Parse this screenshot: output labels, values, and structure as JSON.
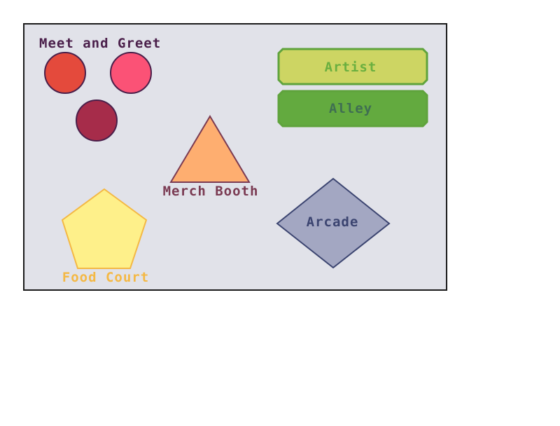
{
  "map": {
    "background_color": "#e1e2e9",
    "border_color": "#1b1b1b"
  },
  "zones": {
    "meet_and_greet": {
      "label": "Meet and Greet",
      "label_color": "#4a1f4a",
      "markers": [
        {
          "color": "#e44a3c"
        },
        {
          "color": "#fb5276"
        },
        {
          "color": "#a62c4a"
        }
      ],
      "outline_color": "#4a1f4a"
    },
    "artist_alley": {
      "label_top": "Artist",
      "label_bottom": "Alley",
      "top_fill": "#cdd563",
      "top_text_color": "#6aaf3f",
      "bottom_fill": "#63aa3f",
      "bottom_text_color": "#3f6e52",
      "outline_color": "#5fa33c"
    },
    "merch_booth": {
      "label": "Merch Booth",
      "fill": "#feae70",
      "outline_color": "#7a3a52",
      "label_color": "#7a3a52"
    },
    "food_court": {
      "label": "Food Court",
      "fill": "#fef08a",
      "outline_color": "#f4b844",
      "label_color": "#f4b844"
    },
    "arcade": {
      "label": "Arcade",
      "fill": "#a3a7c2",
      "outline_color": "#3b4470",
      "label_color": "#3b4470"
    }
  }
}
